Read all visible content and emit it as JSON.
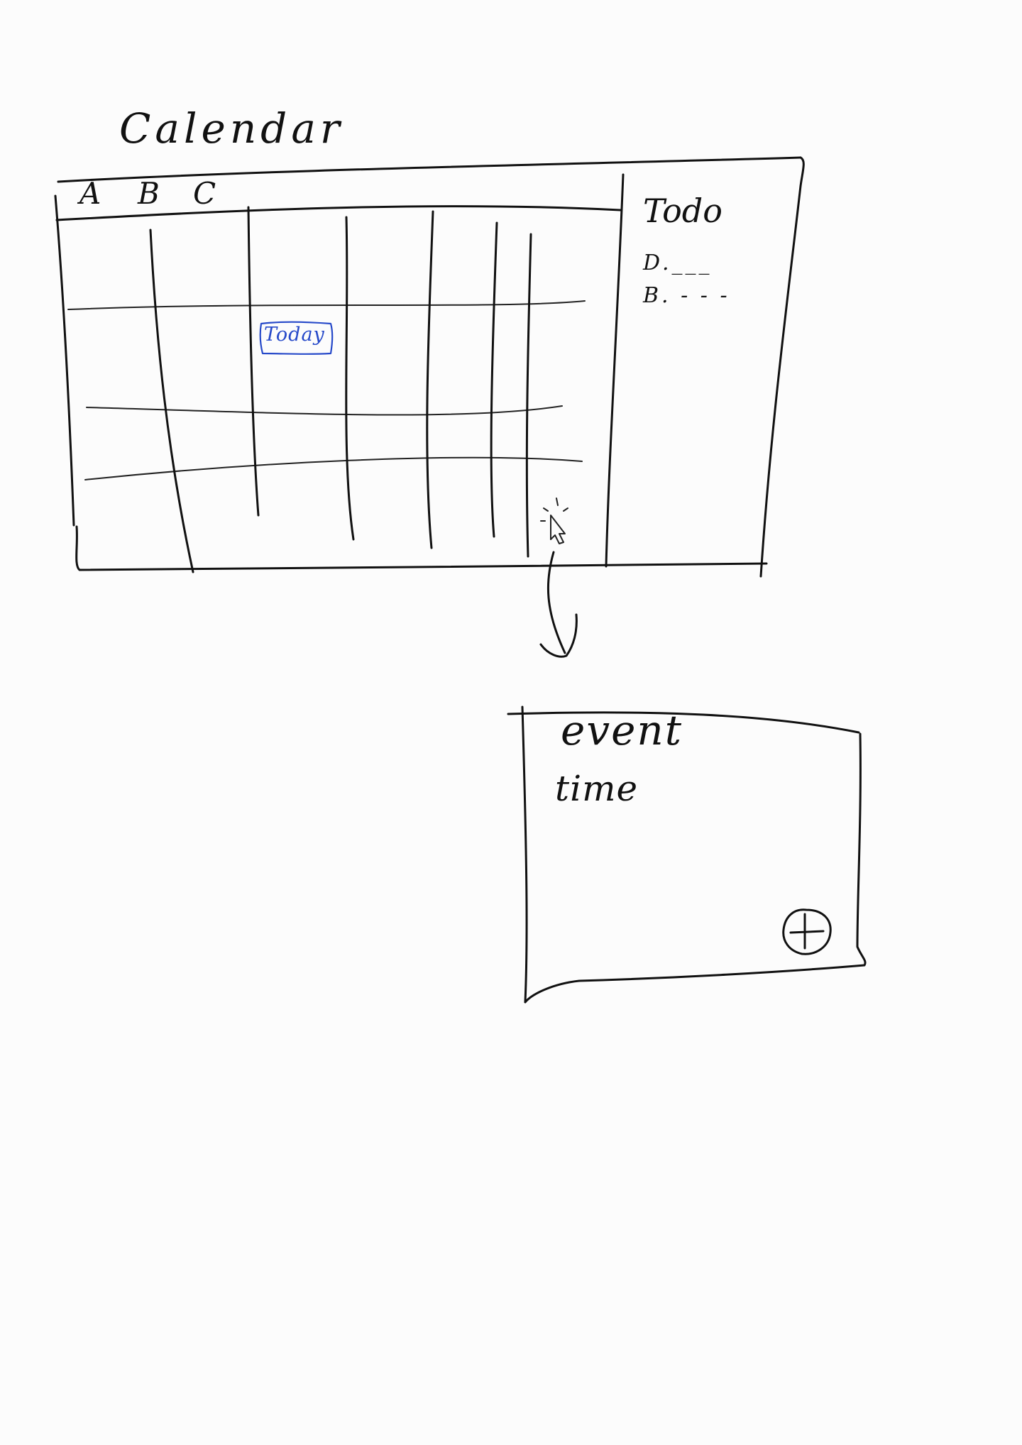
{
  "calendar": {
    "title": "Calendar",
    "columns": [
      "A",
      "B",
      "C"
    ],
    "today_label": "Today"
  },
  "todo": {
    "title": "Todo",
    "items": [
      "D.___",
      "B. - - -"
    ]
  },
  "event_popup": {
    "event_label": "event",
    "time_label": "time",
    "add_icon": "plus-circle-icon"
  },
  "colors": {
    "ink": "#111111",
    "today_highlight": "#2649c9",
    "paper": "#fcfcfc"
  }
}
